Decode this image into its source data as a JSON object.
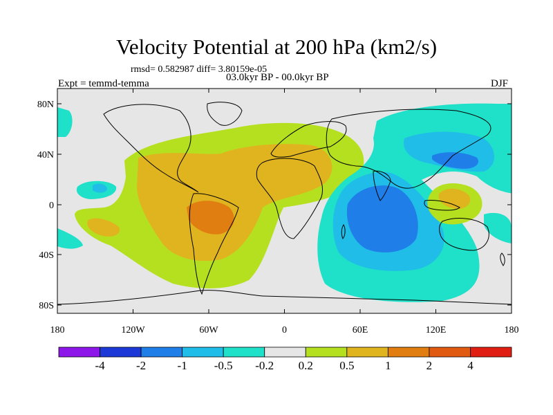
{
  "title": "Velocity Potential at 200 hPa (km2/s)",
  "stats_line": "rmsd= 0.582987 diff= 3.80159e-05",
  "period_line": "03.0kyr BP - 00.0kyr BP",
  "experiment_line": "Expt = temmd-temma",
  "season": "DJF",
  "axes": {
    "lat_labels": [
      "80N",
      "40N",
      "0",
      "40S",
      "80S"
    ],
    "lon_labels": [
      "180",
      "120W",
      "60W",
      "0",
      "60E",
      "120E",
      "180"
    ]
  },
  "colorbar": {
    "colors": [
      "#8c17e8",
      "#1c39d8",
      "#1f7ee8",
      "#1fbde8",
      "#1fe0c8",
      "#e6e6e6",
      "#b5e01f",
      "#e0b41f",
      "#e07e12",
      "#e05a12",
      "#e01e12"
    ],
    "labels": [
      "-4",
      "-2",
      "-1",
      "-0.5",
      "-0.2",
      "0.2",
      "0.5",
      "1",
      "2",
      "4"
    ]
  }
}
